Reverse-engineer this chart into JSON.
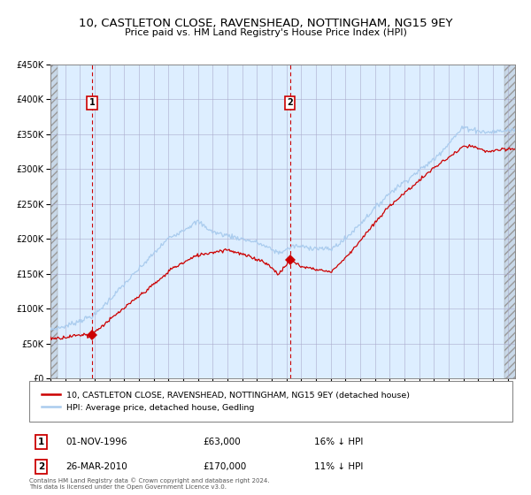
{
  "title": "10, CASTLETON CLOSE, RAVENSHEAD, NOTTINGHAM, NG15 9EY",
  "subtitle": "Price paid vs. HM Land Registry's House Price Index (HPI)",
  "legend_line1": "10, CASTLETON CLOSE, RAVENSHEAD, NOTTINGHAM, NG15 9EY (detached house)",
  "legend_line2": "HPI: Average price, detached house, Gedling",
  "transaction1_date": "01-NOV-1996",
  "transaction1_price": "£63,000",
  "transaction1_hpi": "16% ↓ HPI",
  "transaction1_year": 1996.83,
  "transaction1_value": 63000,
  "transaction2_date": "26-MAR-2010",
  "transaction2_price": "£170,000",
  "transaction2_hpi": "11% ↓ HPI",
  "transaction2_year": 2010.23,
  "transaction2_value": 170000,
  "hpi_color": "#aaccee",
  "property_color": "#cc0000",
  "dashed_line_color": "#cc0000",
  "plot_bg_color": "#ddeeff",
  "ylim": [
    0,
    450000
  ],
  "xlim_start": 1994.0,
  "xlim_end": 2025.5,
  "footer_text": "Contains HM Land Registry data © Crown copyright and database right 2024.\nThis data is licensed under the Open Government Licence v3.0."
}
